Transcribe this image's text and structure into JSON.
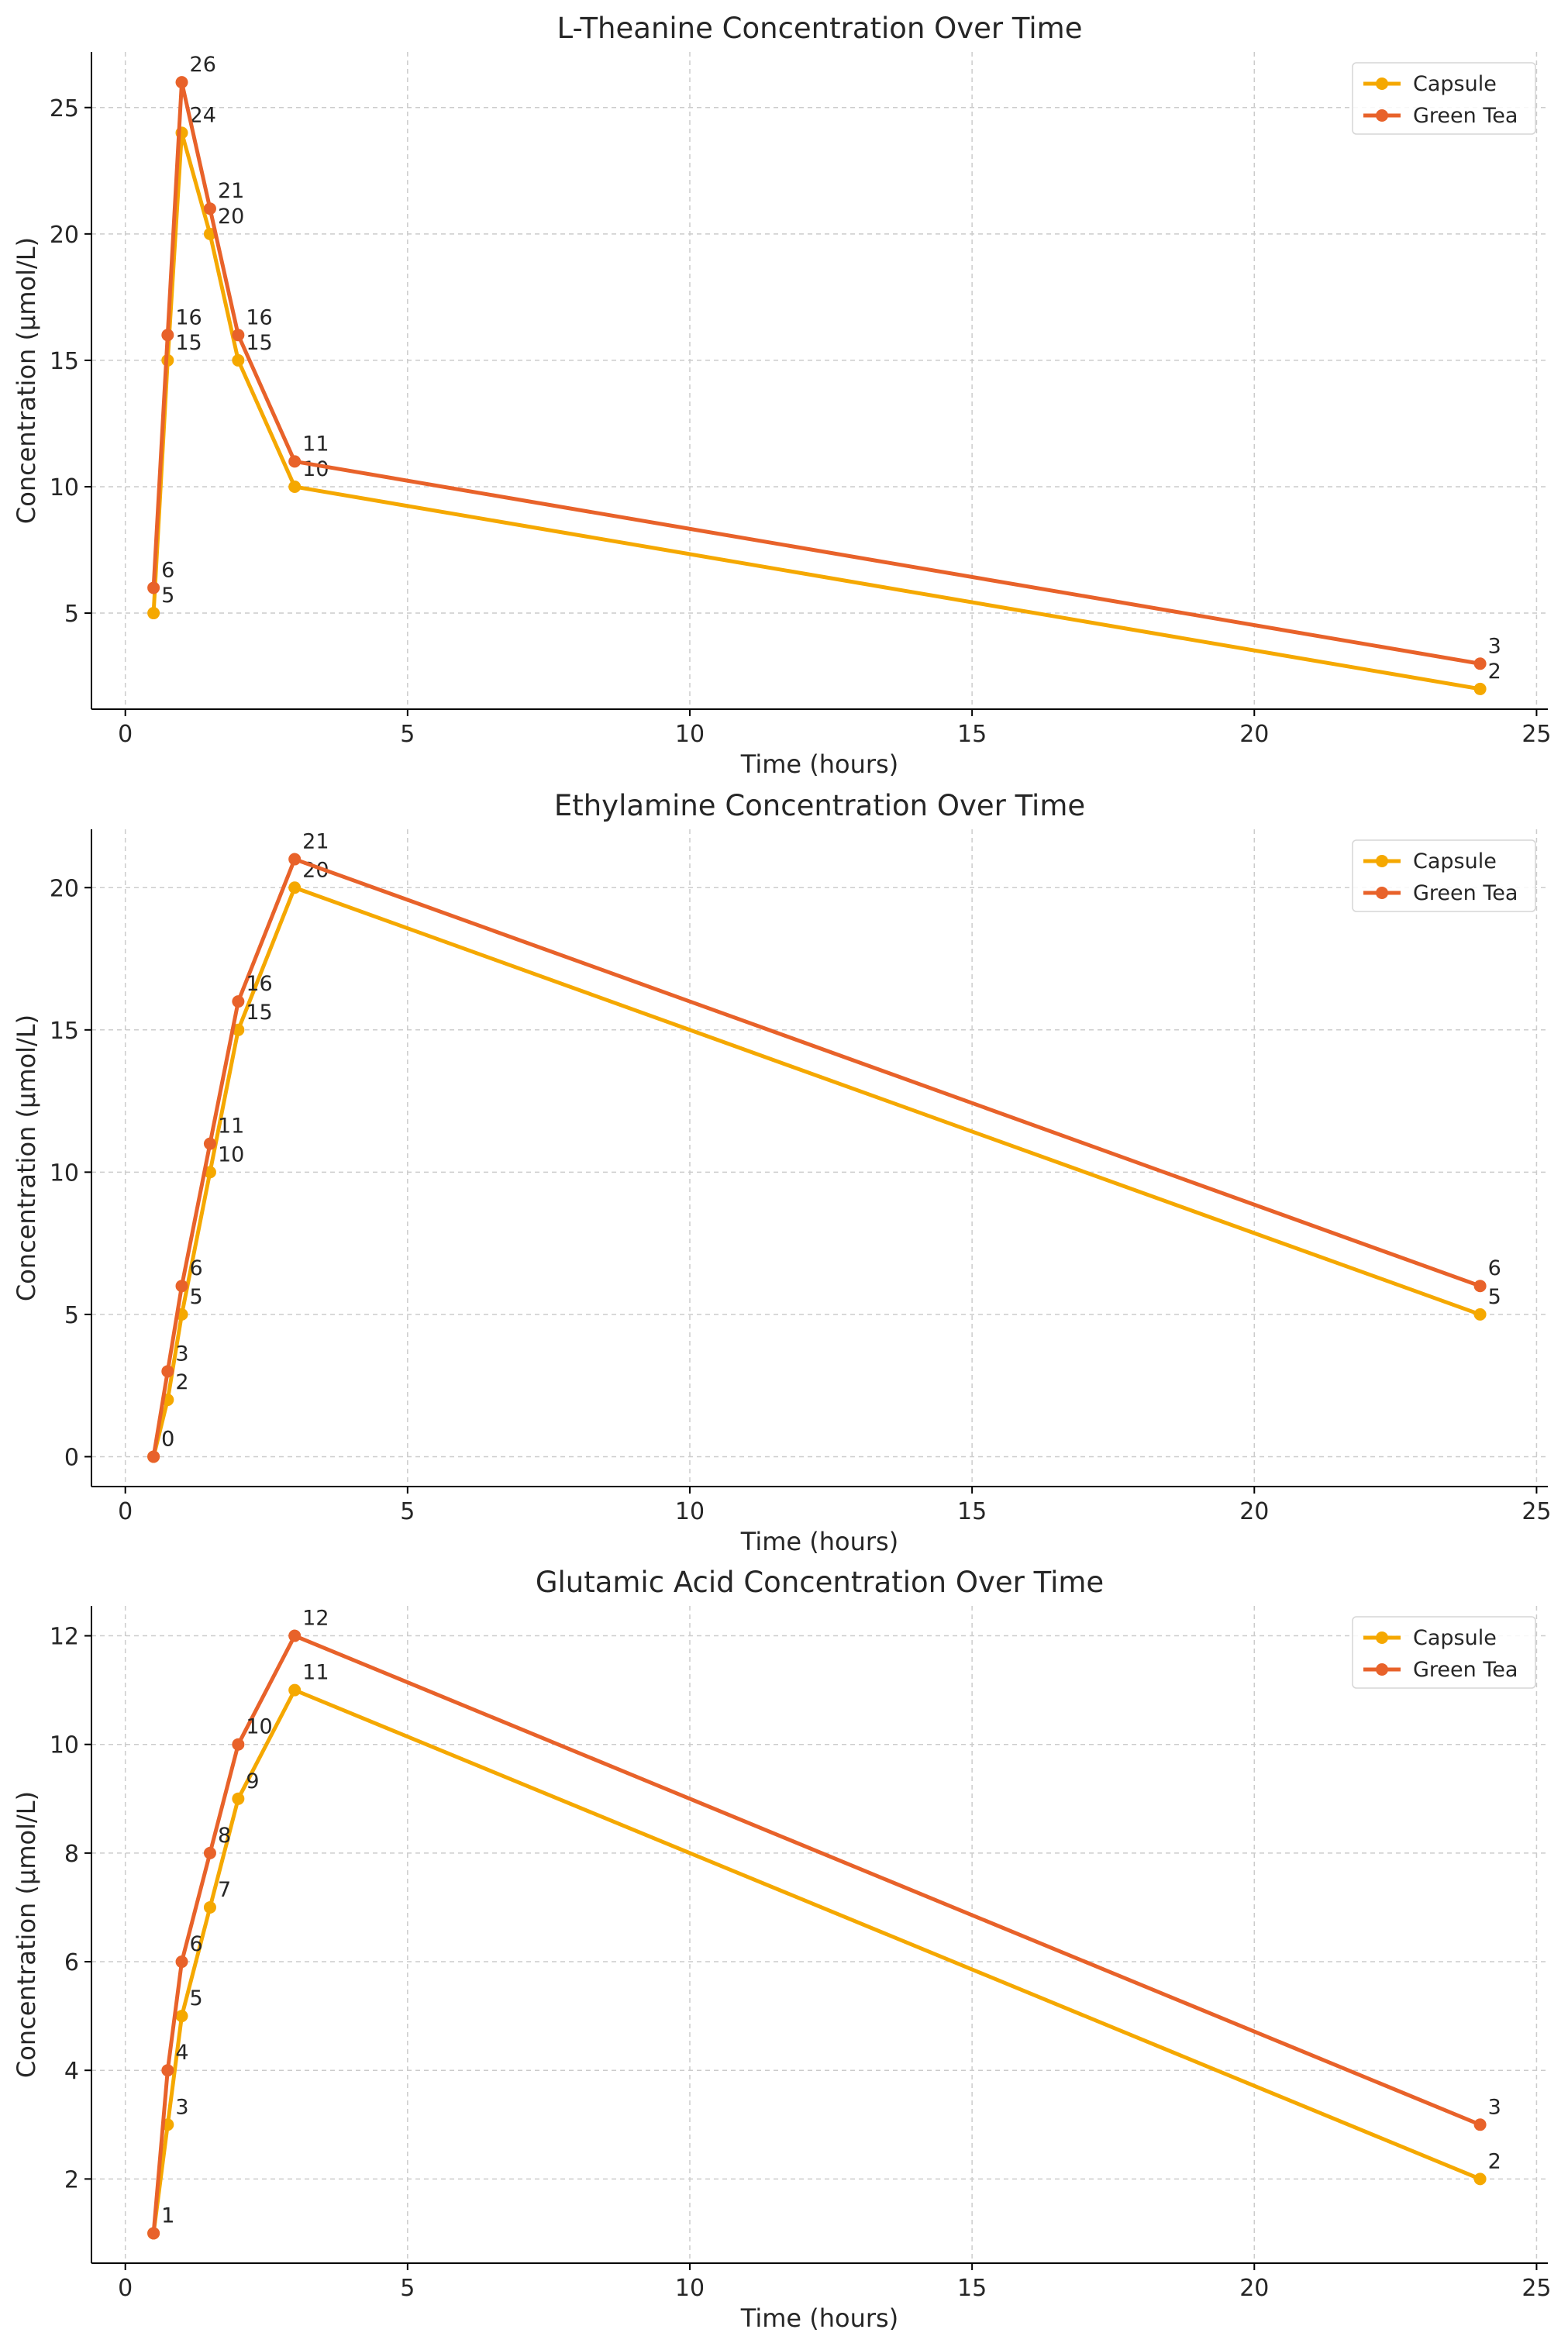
{
  "chart_data": [
    {
      "type": "line",
      "title": "L-Theanine Concentration Over Time",
      "xlabel": "Time (hours)",
      "ylabel": "Concentration (µmol/L)",
      "xlim": [
        -0.6,
        25.2
      ],
      "ylim": [
        1.2,
        27.2
      ],
      "xticks": [
        0,
        5,
        10,
        15,
        20,
        25
      ],
      "yticks": [
        5,
        10,
        15,
        20,
        25
      ],
      "x": [
        0.5,
        0.75,
        1,
        1.5,
        2,
        3,
        24
      ],
      "series": [
        {
          "name": "Capsule",
          "color": "#f5a800",
          "values": [
            5,
            15,
            24,
            20,
            15,
            10,
            2
          ]
        },
        {
          "name": "Green Tea",
          "color": "#e8622a",
          "values": [
            6,
            16,
            26,
            21,
            16,
            11,
            3
          ]
        }
      ],
      "legend": "top-right",
      "grid": true
    },
    {
      "type": "line",
      "title": "Ethylamine Concentration Over Time",
      "xlabel": "Time (hours)",
      "ylabel": "Concentration (µmol/L)",
      "xlim": [
        -0.6,
        25.2
      ],
      "ylim": [
        -1.05,
        22.05
      ],
      "xticks": [
        0,
        5,
        10,
        15,
        20,
        25
      ],
      "yticks": [
        0,
        5,
        10,
        15,
        20
      ],
      "x": [
        0.5,
        0.75,
        1,
        1.5,
        2,
        3,
        24
      ],
      "series": [
        {
          "name": "Capsule",
          "color": "#f5a800",
          "values": [
            0,
            2,
            5,
            10,
            15,
            20,
            5
          ]
        },
        {
          "name": "Green Tea",
          "color": "#e8622a",
          "values": [
            0,
            3,
            6,
            11,
            16,
            21,
            6
          ]
        }
      ],
      "legend": "top-right",
      "grid": true
    },
    {
      "type": "line",
      "title": "Glutamic Acid Concentration Over Time",
      "xlabel": "Time (hours)",
      "ylabel": "Concentration (µmol/L)",
      "xlim": [
        -0.6,
        25.2
      ],
      "ylim": [
        0.45,
        12.55
      ],
      "xticks": [
        0,
        5,
        10,
        15,
        20,
        25
      ],
      "yticks": [
        2,
        4,
        6,
        8,
        10,
        12
      ],
      "x": [
        0.5,
        0.75,
        1,
        1.5,
        2,
        3,
        24
      ],
      "series": [
        {
          "name": "Capsule",
          "color": "#f5a800",
          "values": [
            1,
            3,
            5,
            7,
            9,
            11,
            2
          ]
        },
        {
          "name": "Green Tea",
          "color": "#e8622a",
          "values": [
            1,
            4,
            6,
            8,
            10,
            12,
            3
          ]
        }
      ],
      "legend": "top-right",
      "grid": true
    }
  ]
}
